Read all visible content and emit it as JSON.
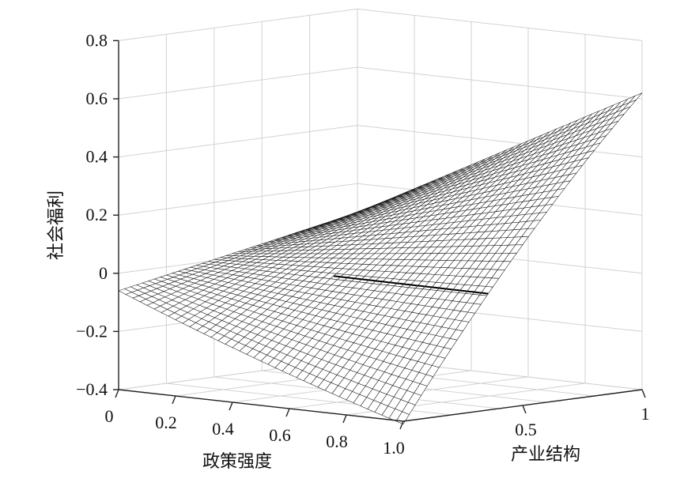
{
  "chart_data": {
    "type": "surface",
    "zlabel": "社会福利",
    "xlabel": "政策强度",
    "ylabel": "产业结构",
    "z_ticks": [
      "0.8",
      "0.6",
      "0.4",
      "0.2",
      "0",
      "−0.2",
      "−0.4"
    ],
    "x_ticks": [
      "0",
      "0.2",
      "0.4",
      "0.6",
      "0.8",
      "1.0"
    ],
    "y_ticks": [
      "0.5",
      "1"
    ],
    "zlim": [
      -0.4,
      0.8
    ],
    "xlim": [
      0,
      1
    ],
    "ylim": [
      0,
      1
    ],
    "grid": true,
    "surface_corners": [
      {
        "policy_intensity": 0,
        "industrial_structure": 0,
        "social_welfare": -0.06
      },
      {
        "policy_intensity": 1,
        "industrial_structure": 0,
        "social_welfare": -0.41
      },
      {
        "policy_intensity": 0,
        "industrial_structure": 1,
        "social_welfare": 0.1
      },
      {
        "policy_intensity": 1,
        "industrial_structure": 1,
        "social_welfare": 0.62
      }
    ],
    "zero_contour": "social welfare = 0 level line across the surface"
  }
}
